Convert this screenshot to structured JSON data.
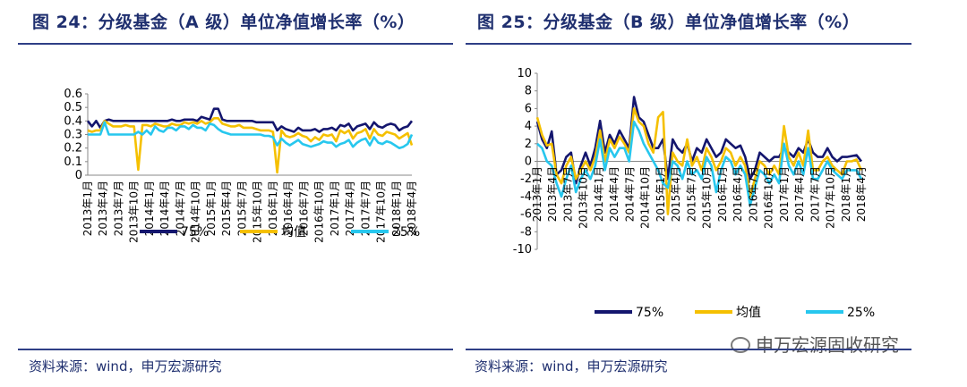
{
  "header": {
    "left_title": "图 24：分级基金（A 级）单位净值增长率（%）",
    "right_title": "图 25：分级基金（B 级）单位净值增长率（%）"
  },
  "footer": {
    "left_source": "资料来源：wind，申万宏源研究",
    "right_source": "资料来源：wind，申万宏源研究"
  },
  "watermark": {
    "text": "申万宏源固收研究",
    "icon": "wechat-icon"
  },
  "colors": {
    "p75": "#14166e",
    "mean": "#f5c000",
    "p25": "#27c7ee",
    "rule": "#2f3f86"
  },
  "chart_data": [
    {
      "type": "line",
      "title": "图 24：分级基金（A 级）单位净值增长率（%）",
      "ylim": [
        0,
        0.6
      ],
      "yticks": [
        "0.6",
        "0.5",
        "0.4",
        "0.3",
        "0.2",
        "0.1",
        "0"
      ],
      "xtick_labels": [
        "2013年1月",
        "2013年4月",
        "2013年7月",
        "2013年10月",
        "2014年1月",
        "2014年4月",
        "2014年7月",
        "2014年10月",
        "2015年1月",
        "2015年4月",
        "2015年7月",
        "2015年10月",
        "2016年1月",
        "2016年4月",
        "2016年7月",
        "2016年10月",
        "2017年1月",
        "2017年4月",
        "2017年7月",
        "2017年10月",
        "2018年1月",
        "2018年4月"
      ],
      "legend": [
        "75%",
        "均值",
        "25%"
      ],
      "legend_position": "bottom",
      "series": [
        {
          "name": "75%",
          "values": [
            0.4,
            0.36,
            0.4,
            0.35,
            0.4,
            0.41,
            0.4,
            0.4,
            0.4,
            0.4,
            0.4,
            0.4,
            0.4,
            0.4,
            0.4,
            0.4,
            0.4,
            0.4,
            0.4,
            0.4,
            0.41,
            0.4,
            0.4,
            0.41,
            0.41,
            0.41,
            0.4,
            0.43,
            0.42,
            0.41,
            0.49,
            0.49,
            0.41,
            0.4,
            0.4,
            0.4,
            0.4,
            0.4,
            0.4,
            0.4,
            0.39,
            0.39,
            0.39,
            0.39,
            0.39,
            0.33,
            0.36,
            0.34,
            0.33,
            0.32,
            0.35,
            0.33,
            0.33,
            0.33,
            0.34,
            0.32,
            0.34,
            0.34,
            0.35,
            0.33,
            0.37,
            0.36,
            0.38,
            0.33,
            0.36,
            0.37,
            0.38,
            0.34,
            0.39,
            0.36,
            0.35,
            0.37,
            0.38,
            0.37,
            0.33,
            0.35,
            0.36,
            0.4
          ]
        },
        {
          "name": "均值",
          "values": [
            0.33,
            0.32,
            0.33,
            0.33,
            0.4,
            0.38,
            0.36,
            0.36,
            0.36,
            0.37,
            0.36,
            0.36,
            0.04,
            0.37,
            0.37,
            0.36,
            0.38,
            0.37,
            0.36,
            0.36,
            0.38,
            0.37,
            0.37,
            0.39,
            0.38,
            0.39,
            0.38,
            0.4,
            0.38,
            0.39,
            0.42,
            0.42,
            0.38,
            0.37,
            0.36,
            0.36,
            0.37,
            0.35,
            0.35,
            0.35,
            0.34,
            0.33,
            0.33,
            0.33,
            0.32,
            0.02,
            0.33,
            0.29,
            0.28,
            0.29,
            0.31,
            0.29,
            0.28,
            0.25,
            0.28,
            0.26,
            0.3,
            0.29,
            0.3,
            0.25,
            0.33,
            0.31,
            0.33,
            0.27,
            0.31,
            0.32,
            0.34,
            0.27,
            0.34,
            0.3,
            0.29,
            0.32,
            0.31,
            0.3,
            0.27,
            0.29,
            0.31,
            0.22
          ]
        },
        {
          "name": "25%",
          "values": [
            0.3,
            0.3,
            0.3,
            0.3,
            0.39,
            0.3,
            0.3,
            0.3,
            0.3,
            0.3,
            0.3,
            0.3,
            0.32,
            0.3,
            0.33,
            0.3,
            0.36,
            0.33,
            0.32,
            0.35,
            0.35,
            0.33,
            0.36,
            0.36,
            0.34,
            0.37,
            0.35,
            0.35,
            0.33,
            0.38,
            0.37,
            0.34,
            0.32,
            0.31,
            0.3,
            0.3,
            0.3,
            0.3,
            0.3,
            0.3,
            0.3,
            0.3,
            0.29,
            0.29,
            0.28,
            0.22,
            0.27,
            0.24,
            0.22,
            0.24,
            0.26,
            0.23,
            0.22,
            0.21,
            0.22,
            0.23,
            0.25,
            0.24,
            0.24,
            0.21,
            0.23,
            0.24,
            0.26,
            0.21,
            0.24,
            0.26,
            0.27,
            0.22,
            0.28,
            0.24,
            0.23,
            0.25,
            0.24,
            0.22,
            0.2,
            0.21,
            0.23,
            0.3
          ]
        }
      ]
    },
    {
      "type": "line",
      "title": "图 25：分级基金（B 级）单位净值增长率（%）",
      "ylim": [
        -10,
        10
      ],
      "yticks": [
        "10",
        "8",
        "6",
        "4",
        "2",
        "0",
        "-2",
        "-4",
        "-6",
        "-8",
        "-10"
      ],
      "xtick_labels": [
        "2013年1月",
        "2013年4月",
        "2013年7月",
        "2013年10月",
        "2014年1月",
        "2014年4月",
        "2014年7月",
        "2014年10月",
        "2015年1月",
        "2015年4月",
        "2015年7月",
        "2015年10月",
        "2016年1月",
        "2016年4月",
        "2016年7月",
        "2016年10月",
        "2017年1月",
        "2017年4月",
        "2017年7月",
        "2017年10月",
        "2018年1月",
        "2018年4月"
      ],
      "legend": [
        "75%",
        "均值",
        "25%"
      ],
      "legend_position": "bottom",
      "series": [
        {
          "name": "75%",
          "values": [
            4.5,
            2.5,
            1.5,
            3.4,
            -1.5,
            -1.0,
            0.5,
            1.0,
            -2.5,
            -0.5,
            1.0,
            -0.5,
            1.5,
            4.6,
            1.0,
            3.0,
            2.0,
            3.5,
            2.5,
            1.5,
            7.3,
            5.0,
            4.5,
            3.0,
            1.5,
            1.5,
            2.5,
            -2.0,
            2.5,
            1.5,
            1.0,
            2.0,
            0.0,
            1.5,
            1.0,
            2.5,
            1.5,
            0.5,
            1.0,
            2.5,
            2.0,
            1.5,
            1.8,
            0.5,
            -2.0,
            -1.0,
            1.0,
            0.5,
            0.0,
            0.5,
            0.5,
            1.5,
            1.0,
            0.5,
            1.5,
            1.0,
            2.5,
            1.0,
            0.5,
            0.5,
            1.5,
            0.5,
            0.0,
            0.5,
            0.5,
            0.6,
            0.7,
            0.0
          ]
        },
        {
          "name": "均值",
          "values": [
            5.0,
            3.0,
            1.8,
            2.0,
            -1.5,
            -2.5,
            -0.5,
            0.5,
            -2.0,
            -1.0,
            0.0,
            -1.0,
            0.5,
            3.5,
            0.0,
            2.5,
            1.5,
            2.8,
            2.0,
            1.0,
            6.0,
            4.5,
            4.0,
            2.0,
            1.0,
            5.0,
            5.6,
            -6.0,
            1.0,
            0.0,
            -0.5,
            2.5,
            -0.5,
            0.5,
            -1.0,
            1.5,
            0.5,
            -1.0,
            0.0,
            1.5,
            1.0,
            -0.5,
            0.5,
            -0.5,
            -4.0,
            -2.0,
            0.0,
            -0.5,
            -1.5,
            -0.5,
            -1.5,
            4.0,
            0.5,
            -0.5,
            1.0,
            -0.5,
            3.5,
            -1.0,
            -1.0,
            0.0,
            0.5,
            -0.5,
            -1.0,
            -1.5,
            0.0,
            0.0,
            0.2,
            -1.0
          ]
        },
        {
          "name": "25%",
          "values": [
            2.0,
            1.5,
            0.0,
            -0.5,
            -2.5,
            -4.0,
            -2.0,
            -0.5,
            -3.5,
            -2.0,
            -1.0,
            -2.0,
            -0.5,
            2.5,
            -1.0,
            1.5,
            0.5,
            1.5,
            1.5,
            0.0,
            4.5,
            3.5,
            2.0,
            1.0,
            0.0,
            -1.0,
            -2.5,
            -3.0,
            0.0,
            -0.5,
            -2.0,
            0.0,
            -1.5,
            -1.0,
            -2.0,
            0.5,
            -0.5,
            -3.5,
            -1.0,
            0.5,
            0.0,
            -1.5,
            -0.5,
            -1.5,
            -5.0,
            -3.0,
            -1.0,
            -1.5,
            -2.5,
            -1.5,
            -2.5,
            2.0,
            -0.5,
            -1.5,
            0.0,
            -1.5,
            1.5,
            -2.0,
            -2.0,
            -1.0,
            0.0,
            -1.0,
            -1.5,
            -2.0,
            -1.0,
            -1.0,
            -1.0,
            -2.0
          ]
        }
      ]
    }
  ]
}
